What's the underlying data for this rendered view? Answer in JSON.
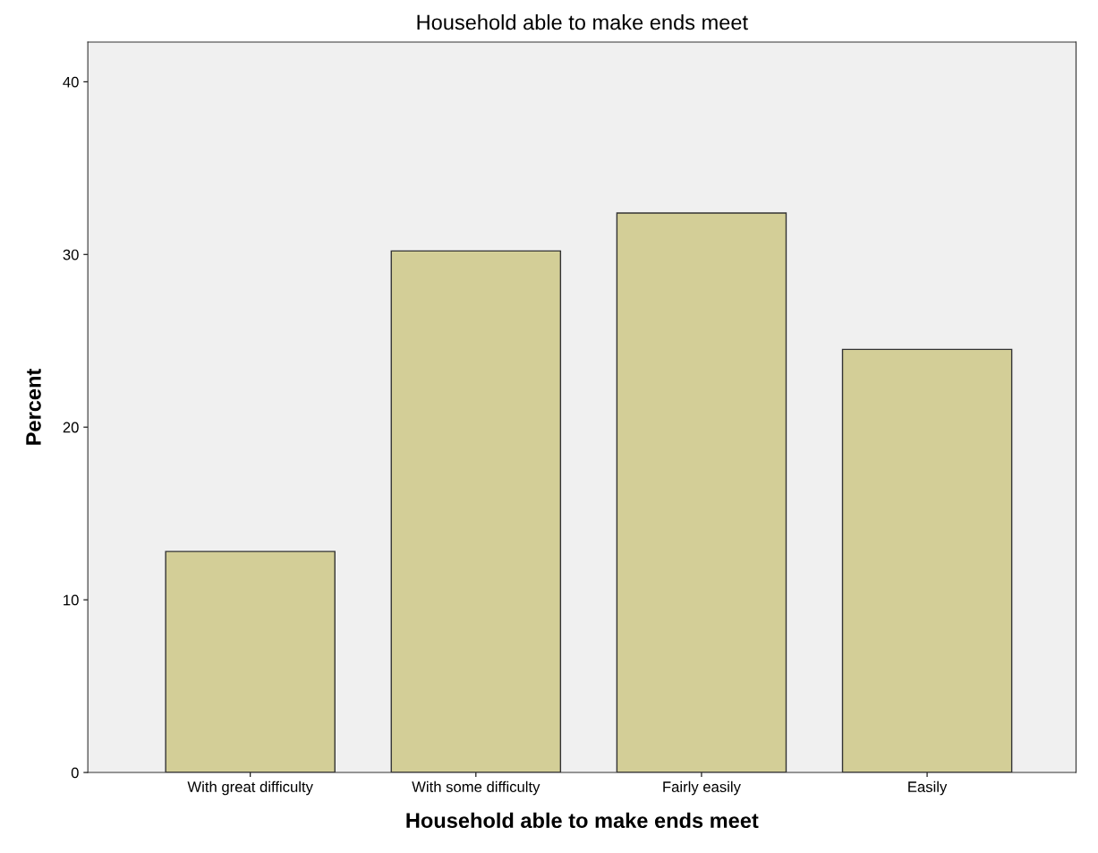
{
  "chart_data": {
    "type": "bar",
    "title": "Household able to make ends meet",
    "xlabel": "Household able to make ends meet",
    "ylabel": "Percent",
    "categories": [
      "With great difficulty",
      "With some difficulty",
      "Fairly easily",
      "Easily"
    ],
    "values": [
      12.8,
      30.2,
      32.4,
      24.5
    ],
    "color": "#d3ce97",
    "ylim": [
      0,
      42.3
    ],
    "yticks": [
      0,
      10,
      20,
      30,
      40
    ],
    "grid": false,
    "legend": false
  }
}
